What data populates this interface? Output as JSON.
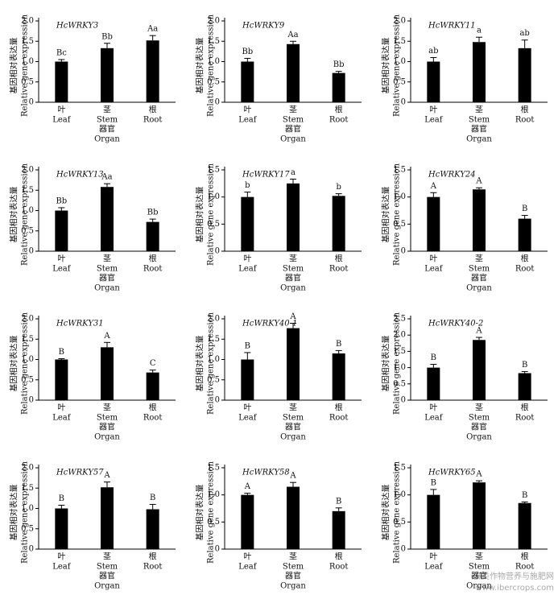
{
  "chart_data": [
    {
      "type": "bar",
      "title": "HcWRKY3",
      "ylabel_cn": "基因相对表达量",
      "ylabel": "Relative gene expression",
      "categories_cn": [
        "叶",
        "茎",
        "根"
      ],
      "categories": [
        "Leaf",
        "Stem",
        "Root"
      ],
      "xlabel_cn": "器官",
      "xlabel": "Organ",
      "values": [
        1.0,
        1.33,
        1.52
      ],
      "errors": [
        0.05,
        0.12,
        0.12
      ],
      "letters": [
        "Bc",
        "Bb",
        "Aa"
      ],
      "color": "#000000",
      "ylim": [
        0,
        2
      ],
      "yticks": [
        0,
        0.5,
        {
          "value": 1,
          "label": "1.0"
        },
        1.5,
        {
          "value": 2,
          "label": "2.0"
        }
      ]
    },
    {
      "type": "bar",
      "title": "HcWRKY9",
      "ylabel_cn": "基因相对表达量",
      "ylabel": "Relative gene expression",
      "categories_cn": [
        "叶",
        "茎",
        "根"
      ],
      "categories": [
        "Leaf",
        "Stem",
        "Root"
      ],
      "xlabel_cn": "器官",
      "xlabel": "Organ",
      "values": [
        1.0,
        1.43,
        0.72
      ],
      "errors": [
        0.08,
        0.07,
        0.04
      ],
      "letters": [
        "Bb",
        "Aa",
        "Bb"
      ],
      "color": "#000000",
      "ylim": [
        0,
        2
      ],
      "yticks": [
        0,
        0.5,
        {
          "value": 1,
          "label": "1.0"
        },
        1.5,
        {
          "value": 2,
          "label": "2.0"
        }
      ]
    },
    {
      "type": "bar",
      "title": "HcWRKY11",
      "ylabel_cn": "基因相对表达量",
      "ylabel": "Relative gene expression",
      "categories_cn": [
        "叶",
        "茎",
        "根"
      ],
      "categories": [
        "Leaf",
        "Stem",
        "Root"
      ],
      "xlabel_cn": "器官",
      "xlabel": "Organ",
      "values": [
        1.0,
        1.48,
        1.33
      ],
      "errors": [
        0.1,
        0.12,
        0.2
      ],
      "letters": [
        "ab",
        "a",
        "ab"
      ],
      "color": "#000000",
      "ylim": [
        0,
        2
      ],
      "yticks": [
        0,
        0.5,
        {
          "value": 1,
          "label": "1.0"
        },
        1.5,
        {
          "value": 2,
          "label": "2.0"
        }
      ]
    },
    {
      "type": "bar",
      "title": "HcWRKY13",
      "ylabel_cn": "基因相对表达量",
      "ylabel": "Relative gene expression",
      "categories_cn": [
        "叶",
        "茎",
        "根"
      ],
      "categories": [
        "Leaf",
        "Stem",
        "Root"
      ],
      "xlabel_cn": "器官",
      "xlabel": "Organ",
      "values": [
        1.0,
        1.58,
        0.72
      ],
      "errors": [
        0.07,
        0.08,
        0.07
      ],
      "letters": [
        "Bb",
        "Aa",
        "Bb"
      ],
      "color": "#000000",
      "ylim": [
        0,
        2
      ],
      "yticks": [
        0,
        0.5,
        {
          "value": 1,
          "label": "1.0"
        },
        1.5,
        {
          "value": 2,
          "label": "2.0"
        }
      ]
    },
    {
      "type": "bar",
      "title": "HcWRKY17",
      "ylabel_cn": "基因相对表达量",
      "ylabel": "Relative gene expression",
      "categories_cn": [
        "叶",
        "茎",
        "根"
      ],
      "categories": [
        "Leaf",
        "Stem",
        "Root"
      ],
      "xlabel_cn": "器官",
      "xlabel": "Organ",
      "values": [
        1.0,
        1.25,
        1.02
      ],
      "errors": [
        0.09,
        0.08,
        0.04
      ],
      "letters": [
        "b",
        "a",
        "b"
      ],
      "color": "#000000",
      "ylim": [
        0,
        1.5
      ],
      "yticks": [
        0,
        0.5,
        {
          "value": 1,
          "label": "1.0"
        },
        1.5
      ]
    },
    {
      "type": "bar",
      "title": "HcWRKY24",
      "ylabel_cn": "基因相对表达量",
      "ylabel": "Relative gene expression",
      "categories_cn": [
        "叶",
        "茎",
        "根"
      ],
      "categories": [
        "Leaf",
        "Stem",
        "Root"
      ],
      "xlabel_cn": "器官",
      "xlabel": "Organ",
      "values": [
        1.0,
        1.14,
        0.6
      ],
      "errors": [
        0.08,
        0.03,
        0.06
      ],
      "letters": [
        "A",
        "A",
        "B"
      ],
      "color": "#000000",
      "ylim": [
        0,
        1.5
      ],
      "yticks": [
        0,
        0.5,
        {
          "value": 1,
          "label": "1.0"
        },
        1.5
      ]
    },
    {
      "type": "bar",
      "title": "HcWRKY31",
      "ylabel_cn": "基因相对表达量",
      "ylabel": "Relative gene expression",
      "categories_cn": [
        "叶",
        "茎",
        "根"
      ],
      "categories": [
        "Leaf",
        "Stem",
        "Root"
      ],
      "xlabel_cn": "器官",
      "xlabel": "Organ",
      "values": [
        1.0,
        1.3,
        0.68
      ],
      "errors": [
        0.02,
        0.12,
        0.06
      ],
      "letters": [
        "B",
        "A",
        "C"
      ],
      "color": "#000000",
      "ylim": [
        0,
        2
      ],
      "yticks": [
        0,
        0.5,
        {
          "value": 1,
          "label": "1.0"
        },
        1.5,
        {
          "value": 2,
          "label": "2.0"
        }
      ]
    },
    {
      "type": "bar",
      "title": "HcWRKY40-1",
      "ylabel_cn": "基因相对表达量",
      "ylabel": "Relative gene expression",
      "categories_cn": [
        "叶",
        "茎",
        "根"
      ],
      "categories": [
        "Leaf",
        "Stem",
        "Root"
      ],
      "xlabel_cn": "器官",
      "xlabel": "Organ",
      "values": [
        1.0,
        1.77,
        1.15
      ],
      "errors": [
        0.17,
        0.12,
        0.07
      ],
      "letters": [
        "B",
        "A",
        "B"
      ],
      "color": "#000000",
      "ylim": [
        0,
        2
      ],
      "yticks": [
        0,
        0.5,
        {
          "value": 1,
          "label": "1.0"
        },
        1.5,
        {
          "value": 2,
          "label": "2.0"
        }
      ]
    },
    {
      "type": "bar",
      "title": "HcWRKY40-2",
      "ylabel_cn": "基因相对表达量",
      "ylabel": "Relative gene expression",
      "categories_cn": [
        "叶",
        "茎",
        "根"
      ],
      "categories": [
        "Leaf",
        "Stem",
        "Root"
      ],
      "xlabel_cn": "器官",
      "xlabel": "Organ",
      "values": [
        1.0,
        1.85,
        0.83
      ],
      "errors": [
        0.1,
        0.08,
        0.05
      ],
      "letters": [
        "B",
        "A",
        "B"
      ],
      "color": "#000000",
      "ylim": [
        0,
        2.5
      ],
      "yticks": [
        0,
        0.5,
        {
          "value": 1,
          "label": "1.0"
        },
        1.5,
        {
          "value": 2,
          "label": "2.0"
        },
        2.5
      ]
    },
    {
      "type": "bar",
      "title": "HcWRKY57",
      "ylabel_cn": "基因相对表达量",
      "ylabel": "Relative gene expression",
      "categories_cn": [
        "叶",
        "茎",
        "根"
      ],
      "categories": [
        "Leaf",
        "Stem",
        "Root"
      ],
      "xlabel_cn": "器官",
      "xlabel": "Organ",
      "values": [
        1.0,
        1.52,
        0.98
      ],
      "errors": [
        0.08,
        0.13,
        0.12
      ],
      "letters": [
        "B",
        "A",
        "B"
      ],
      "color": "#000000",
      "ylim": [
        0,
        2
      ],
      "yticks": [
        0,
        0.5,
        {
          "value": 1,
          "label": "1.0"
        },
        1.5,
        {
          "value": 2,
          "label": "2.0"
        }
      ]
    },
    {
      "type": "bar",
      "title": "HcWRKY58",
      "ylabel_cn": "基因相对表达量",
      "ylabel": "Relative gene expression",
      "categories_cn": [
        "叶",
        "茎",
        "根"
      ],
      "categories": [
        "Leaf",
        "Stem",
        "Root"
      ],
      "xlabel_cn": "器官",
      "xlabel": "Organ",
      "values": [
        1.0,
        1.15,
        0.7
      ],
      "errors": [
        0.03,
        0.08,
        0.06
      ],
      "letters": [
        "A",
        "A",
        "B"
      ],
      "color": "#000000",
      "ylim": [
        0,
        1.5
      ],
      "yticks": [
        0,
        0.5,
        {
          "value": 1,
          "label": "1.0"
        },
        1.5
      ]
    },
    {
      "type": "bar",
      "title": "HcWRKY65",
      "ylabel_cn": "基因相对表达量",
      "ylabel": "Relative gene expression",
      "categories_cn": [
        "叶",
        "茎",
        "根"
      ],
      "categories": [
        "Leaf",
        "Stem",
        "Root"
      ],
      "xlabel_cn": "器官",
      "xlabel": "Organ",
      "values": [
        1.0,
        1.23,
        0.85
      ],
      "errors": [
        0.1,
        0.03,
        0.02
      ],
      "letters": [
        "B",
        "A",
        "B"
      ],
      "color": "#000000",
      "ylim": [
        0,
        1.5
      ],
      "yticks": [
        0,
        0.5,
        {
          "value": 1,
          "label": "1.0"
        },
        1.5
      ]
    }
  ],
  "watermark": [
    "麻类作物营养与施肥网",
    "www.ibercrops.com"
  ]
}
